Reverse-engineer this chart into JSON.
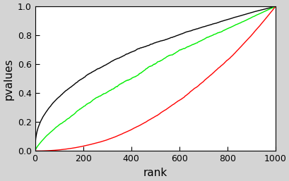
{
  "n_points": 1000,
  "title": "",
  "xlabel": "rank",
  "ylabel": "pvalues",
  "xlim": [
    0,
    1000
  ],
  "ylim": [
    0.0,
    1.0
  ],
  "xticks": [
    0,
    200,
    400,
    600,
    800,
    1000
  ],
  "yticks": [
    0.0,
    0.2,
    0.4,
    0.6,
    0.8,
    1.0
  ],
  "background_color": "#ffffff",
  "plot_bg_color": "#ffffff",
  "outer_bg_color": "#d4d4d4",
  "line_colors": [
    "black",
    "#00ee00",
    "red"
  ],
  "line_width": 1.0,
  "black_power": 0.42,
  "green_power": 0.75,
  "red_power": 2.1,
  "noise_seed": 42,
  "noise_scale_black": 0.012,
  "noise_scale_green": 0.015,
  "noise_scale_red": 0.01,
  "tick_label_fontsize": 9,
  "axis_label_fontsize": 11
}
